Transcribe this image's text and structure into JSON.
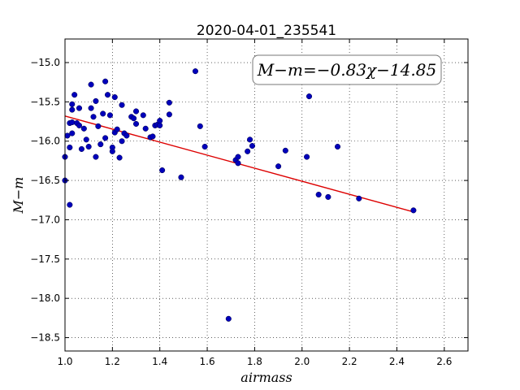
{
  "chart_data": {
    "type": "scatter",
    "title": "2020-04-01_235541",
    "xlabel": "airmass",
    "ylabel": "M−m",
    "xlim": [
      1.0,
      2.7
    ],
    "ylim": [
      -14.7,
      -18.67
    ],
    "y_inverted": true,
    "grid": true,
    "xticks": [
      "1.0",
      "1.2",
      "1.4",
      "1.6",
      "1.8",
      "2.0",
      "2.2",
      "2.4",
      "2.6"
    ],
    "xtick_values": [
      1.0,
      1.2,
      1.4,
      1.6,
      1.8,
      2.0,
      2.2,
      2.4,
      2.6
    ],
    "yticks": [
      "−15.0",
      "−15.5",
      "−16.0",
      "−16.5",
      "−17.0",
      "−17.5",
      "−18.0",
      "−18.5"
    ],
    "ytick_values": [
      -15.0,
      -15.5,
      -16.0,
      -16.5,
      -17.0,
      -17.5,
      -18.0,
      -18.5
    ],
    "annotation": "M−m=−0.83χ−14.85",
    "fit": {
      "slope": -0.83,
      "intercept": -14.85,
      "x_range": [
        1.0,
        2.47
      ],
      "color": "#dd0000"
    },
    "point_color": "#0000bb",
    "points": [
      [
        1.0,
        -16.2
      ],
      [
        1.0,
        -16.5
      ],
      [
        1.01,
        -15.93
      ],
      [
        1.02,
        -15.77
      ],
      [
        1.02,
        -16.08
      ],
      [
        1.02,
        -16.81
      ],
      [
        1.03,
        -15.53
      ],
      [
        1.03,
        -15.6
      ],
      [
        1.03,
        -15.76
      ],
      [
        1.03,
        -15.9
      ],
      [
        1.04,
        -15.41
      ],
      [
        1.05,
        -15.77
      ],
      [
        1.06,
        -15.58
      ],
      [
        1.06,
        -15.8
      ],
      [
        1.07,
        -16.1
      ],
      [
        1.08,
        -15.84
      ],
      [
        1.09,
        -15.98
      ],
      [
        1.1,
        -16.07
      ],
      [
        1.11,
        -15.58
      ],
      [
        1.11,
        -15.28
      ],
      [
        1.12,
        -15.69
      ],
      [
        1.13,
        -15.49
      ],
      [
        1.13,
        -16.2
      ],
      [
        1.14,
        -15.81
      ],
      [
        1.15,
        -16.04
      ],
      [
        1.16,
        -15.65
      ],
      [
        1.17,
        -15.24
      ],
      [
        1.17,
        -15.96
      ],
      [
        1.18,
        -15.41
      ],
      [
        1.19,
        -15.67
      ],
      [
        1.2,
        -16.08
      ],
      [
        1.2,
        -16.13
      ],
      [
        1.21,
        -15.89
      ],
      [
        1.21,
        -15.44
      ],
      [
        1.22,
        -15.85
      ],
      [
        1.23,
        -16.21
      ],
      [
        1.24,
        -15.54
      ],
      [
        1.24,
        -16.0
      ],
      [
        1.25,
        -15.9
      ],
      [
        1.26,
        -15.93
      ],
      [
        1.28,
        -15.69
      ],
      [
        1.29,
        -15.71
      ],
      [
        1.3,
        -15.78
      ],
      [
        1.3,
        -15.62
      ],
      [
        1.33,
        -15.67
      ],
      [
        1.34,
        -15.84
      ],
      [
        1.36,
        -15.95
      ],
      [
        1.37,
        -15.94
      ],
      [
        1.38,
        -15.8
      ],
      [
        1.39,
        -15.79
      ],
      [
        1.4,
        -15.74
      ],
      [
        1.4,
        -15.8
      ],
      [
        1.41,
        -16.37
      ],
      [
        1.44,
        -15.51
      ],
      [
        1.44,
        -15.66
      ],
      [
        1.49,
        -16.46
      ],
      [
        1.55,
        -15.11
      ],
      [
        1.57,
        -15.81
      ],
      [
        1.59,
        -16.07
      ],
      [
        1.69,
        -18.26
      ],
      [
        1.72,
        -16.24
      ],
      [
        1.73,
        -16.28
      ],
      [
        1.73,
        -16.2
      ],
      [
        1.77,
        -16.13
      ],
      [
        1.78,
        -15.98
      ],
      [
        1.79,
        -16.06
      ],
      [
        1.9,
        -16.32
      ],
      [
        1.93,
        -16.12
      ],
      [
        2.02,
        -16.2
      ],
      [
        2.03,
        -15.43
      ],
      [
        2.07,
        -16.68
      ],
      [
        2.11,
        -16.71
      ],
      [
        2.15,
        -16.07
      ],
      [
        2.24,
        -16.73
      ],
      [
        2.47,
        -16.88
      ]
    ]
  }
}
